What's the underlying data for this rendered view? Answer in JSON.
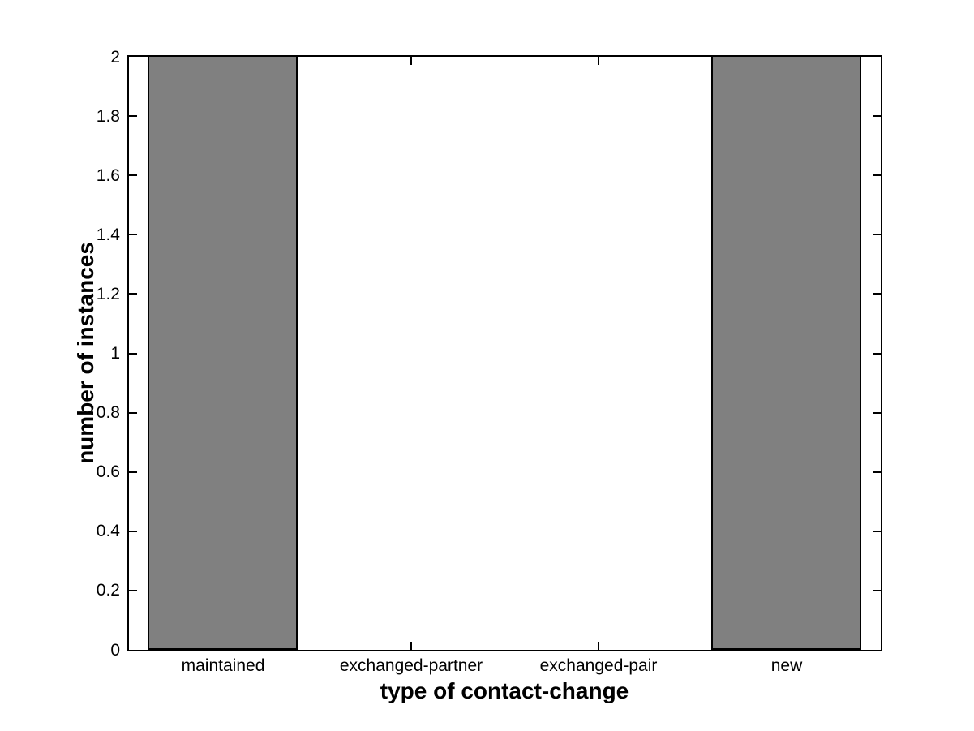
{
  "chart_data": {
    "type": "bar",
    "title": "",
    "categories": [
      "maintained",
      "exchanged-partner",
      "exchanged-pair",
      "new"
    ],
    "values": [
      2,
      0,
      0,
      2
    ],
    "xlabel": "type of contact-change",
    "ylabel": "number of instances",
    "ylim": [
      0,
      2
    ],
    "yticks": [
      0,
      0.2,
      0.4,
      0.6,
      0.8,
      1,
      1.2,
      1.4,
      1.6,
      1.8,
      2
    ],
    "ytick_labels": [
      "0",
      "0.2",
      "0.4",
      "0.6",
      "0.8",
      "1",
      "1.2",
      "1.4",
      "1.6",
      "1.8",
      "2"
    ],
    "bar_width_fraction": 0.8,
    "bar_fill_color": "#808080",
    "bar_edge_color": "#000000",
    "axis_color": "#000000",
    "background_color": "#ffffff",
    "grid": false,
    "legend": "none",
    "box": true,
    "tick_direction": "in"
  }
}
